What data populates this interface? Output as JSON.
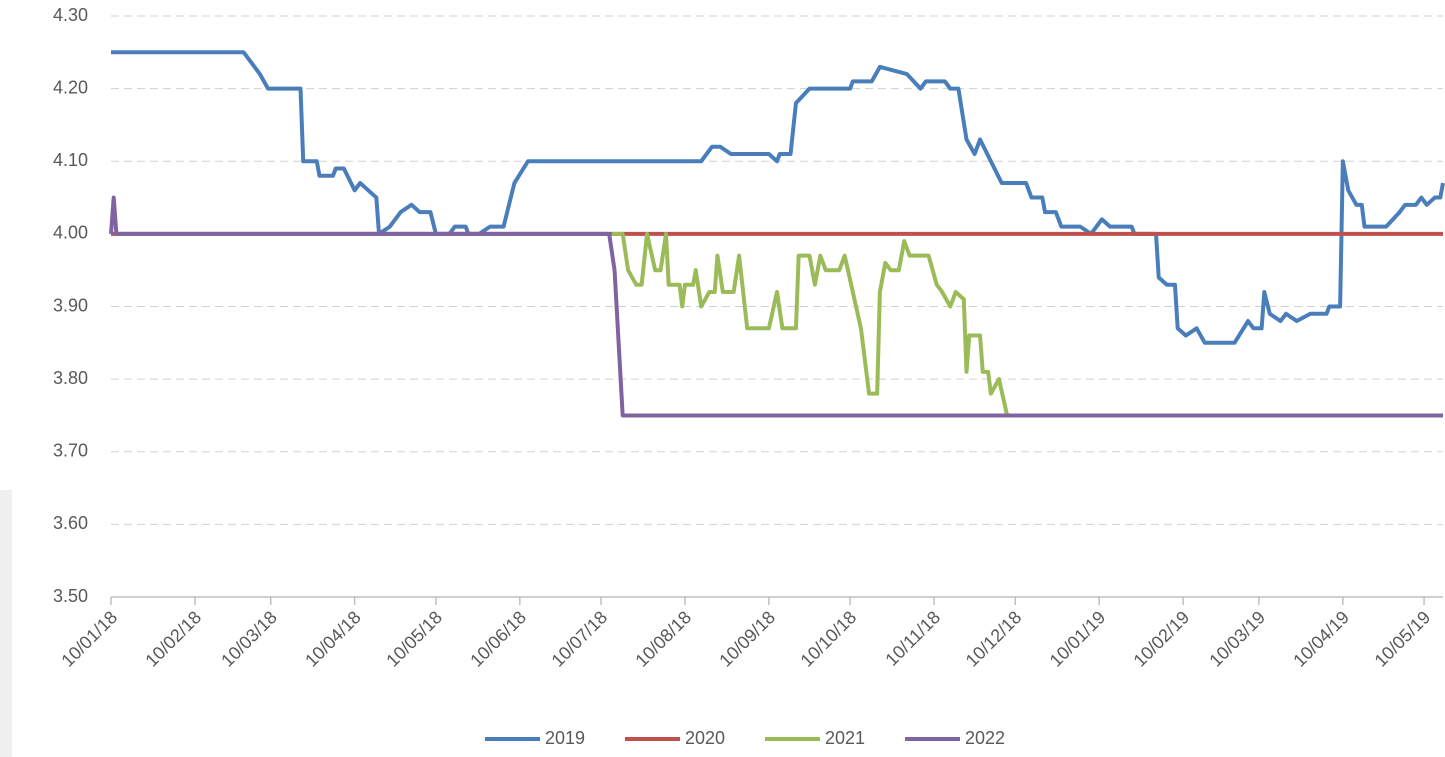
{
  "chart_data": {
    "type": "line",
    "xlim": [
      "2018-01-10",
      "2019-05-17"
    ],
    "xticks": [
      {
        "value": "2018-01-10",
        "label": "10/01/18"
      },
      {
        "value": "2018-02-10",
        "label": "10/02/18"
      },
      {
        "value": "2018-03-10",
        "label": "10/03/18"
      },
      {
        "value": "2018-04-10",
        "label": "10/04/18"
      },
      {
        "value": "2018-05-10",
        "label": "10/05/18"
      },
      {
        "value": "2018-06-10",
        "label": "10/06/18"
      },
      {
        "value": "2018-07-10",
        "label": "10/07/18"
      },
      {
        "value": "2018-08-10",
        "label": "10/08/18"
      },
      {
        "value": "2018-09-10",
        "label": "10/09/18"
      },
      {
        "value": "2018-10-10",
        "label": "10/10/18"
      },
      {
        "value": "2018-11-10",
        "label": "10/11/18"
      },
      {
        "value": "2018-12-10",
        "label": "10/12/18"
      },
      {
        "value": "2019-01-10",
        "label": "10/01/19"
      },
      {
        "value": "2019-02-10",
        "label": "10/02/19"
      },
      {
        "value": "2019-03-10",
        "label": "10/03/19"
      },
      {
        "value": "2019-04-10",
        "label": "10/04/19"
      },
      {
        "value": "2019-05-10",
        "label": "10/05/19"
      }
    ],
    "ylim": [
      3.5,
      4.3
    ],
    "yticks": [
      {
        "value": 3.5,
        "label": "3.50"
      },
      {
        "value": 3.6,
        "label": "3.60"
      },
      {
        "value": 3.7,
        "label": "3.70"
      },
      {
        "value": 3.8,
        "label": "3.80"
      },
      {
        "value": 3.9,
        "label": "3.90"
      },
      {
        "value": 4.0,
        "label": "4.00"
      },
      {
        "value": 4.1,
        "label": "4.10"
      },
      {
        "value": 4.2,
        "label": "4.20"
      },
      {
        "value": 4.3,
        "label": "4.30"
      }
    ],
    "grid": true,
    "legend": "bottom",
    "series": [
      {
        "name": "2019",
        "color": "#4a7ebb",
        "x": [
          "2018-01-10",
          "2018-02-28",
          "2018-03-06",
          "2018-03-09",
          "2018-03-21",
          "2018-03-22",
          "2018-03-27",
          "2018-03-28",
          "2018-04-02",
          "2018-04-03",
          "2018-04-06",
          "2018-04-10",
          "2018-04-12",
          "2018-04-18",
          "2018-04-19",
          "2018-04-23",
          "2018-04-27",
          "2018-05-01",
          "2018-05-04",
          "2018-05-08",
          "2018-05-10",
          "2018-05-15",
          "2018-05-17",
          "2018-05-21",
          "2018-05-22",
          "2018-05-26",
          "2018-05-30",
          "2018-06-04",
          "2018-06-08",
          "2018-06-13",
          "2018-08-16",
          "2018-08-20",
          "2018-08-23",
          "2018-08-27",
          "2018-09-10",
          "2018-09-13",
          "2018-09-14",
          "2018-09-18",
          "2018-09-20",
          "2018-09-25",
          "2018-10-10",
          "2018-10-11",
          "2018-10-18",
          "2018-10-21",
          "2018-10-31",
          "2018-11-05",
          "2018-11-07",
          "2018-11-14",
          "2018-11-16",
          "2018-11-19",
          "2018-11-22",
          "2018-11-25",
          "2018-11-27",
          "2018-12-01",
          "2018-12-05",
          "2018-12-14",
          "2018-12-16",
          "2018-12-20",
          "2018-12-21",
          "2018-12-25",
          "2018-12-27",
          "2019-01-03",
          "2019-01-07",
          "2019-01-11",
          "2019-01-14",
          "2019-01-22",
          "2019-01-23",
          "2019-01-31",
          "2019-02-01",
          "2019-02-04",
          "2019-02-07",
          "2019-02-08",
          "2019-02-11",
          "2019-02-15",
          "2019-02-18",
          "2019-03-01",
          "2019-03-06",
          "2019-03-08",
          "2019-03-11",
          "2019-03-12",
          "2019-03-14",
          "2019-03-18",
          "2019-03-20",
          "2019-03-24",
          "2019-03-29",
          "2019-04-04",
          "2019-04-05",
          "2019-04-09",
          "2019-04-10",
          "2019-04-12",
          "2019-04-15",
          "2019-04-17",
          "2019-04-18",
          "2019-04-26",
          "2019-05-01",
          "2019-05-03",
          "2019-05-07",
          "2019-05-09",
          "2019-05-11",
          "2019-05-14",
          "2019-05-16",
          "2019-05-17"
        ],
        "values": [
          4.25,
          4.25,
          4.22,
          4.2,
          4.2,
          4.1,
          4.1,
          4.08,
          4.08,
          4.09,
          4.09,
          4.06,
          4.07,
          4.05,
          4.0,
          4.01,
          4.03,
          4.04,
          4.03,
          4.03,
          4.0,
          4.0,
          4.01,
          4.01,
          4.0,
          4.0,
          4.01,
          4.01,
          4.07,
          4.1,
          4.1,
          4.12,
          4.12,
          4.11,
          4.11,
          4.1,
          4.11,
          4.11,
          4.18,
          4.2,
          4.2,
          4.21,
          4.21,
          4.23,
          4.22,
          4.2,
          4.21,
          4.21,
          4.2,
          4.2,
          4.13,
          4.11,
          4.13,
          4.1,
          4.07,
          4.07,
          4.05,
          4.05,
          4.03,
          4.03,
          4.01,
          4.01,
          4.0,
          4.02,
          4.01,
          4.01,
          4.0,
          4.0,
          3.94,
          3.93,
          3.93,
          3.87,
          3.86,
          3.87,
          3.85,
          3.85,
          3.88,
          3.87,
          3.87,
          3.92,
          3.89,
          3.88,
          3.89,
          3.88,
          3.89,
          3.89,
          3.9,
          3.9,
          4.1,
          4.06,
          4.04,
          4.04,
          4.01,
          4.01,
          4.03,
          4.04,
          4.04,
          4.05,
          4.04,
          4.05,
          4.05,
          4.07
        ]
      },
      {
        "name": "2020",
        "color": "#c0504d",
        "x": [
          "2018-01-10",
          "2019-05-17"
        ],
        "values": [
          4.0,
          4.0
        ]
      },
      {
        "name": "2021",
        "color": "#9bbb59",
        "x": [
          "2018-07-14",
          "2018-07-18",
          "2018-07-20",
          "2018-07-23",
          "2018-07-25",
          "2018-07-27",
          "2018-07-30",
          "2018-08-01",
          "2018-08-03",
          "2018-08-04",
          "2018-08-08",
          "2018-08-09",
          "2018-08-10",
          "2018-08-13",
          "2018-08-14",
          "2018-08-16",
          "2018-08-19",
          "2018-08-21",
          "2018-08-22",
          "2018-08-24",
          "2018-08-28",
          "2018-08-30",
          "2018-09-02",
          "2018-09-10",
          "2018-09-13",
          "2018-09-15",
          "2018-09-20",
          "2018-09-21",
          "2018-09-25",
          "2018-09-27",
          "2018-09-29",
          "2018-10-01",
          "2018-10-06",
          "2018-10-08",
          "2018-10-14",
          "2018-10-17",
          "2018-10-20",
          "2018-10-21",
          "2018-10-23",
          "2018-10-25",
          "2018-10-28",
          "2018-10-30",
          "2018-11-01",
          "2018-11-08",
          "2018-11-11",
          "2018-11-13",
          "2018-11-16",
          "2018-11-18",
          "2018-11-21",
          "2018-11-22",
          "2018-11-23",
          "2018-11-27",
          "2018-11-28",
          "2018-11-30",
          "2018-12-01",
          "2018-12-04",
          "2018-12-07"
        ],
        "values": [
          4.0,
          4.0,
          3.95,
          3.93,
          3.93,
          4.0,
          3.95,
          3.95,
          4.0,
          3.93,
          3.93,
          3.9,
          3.93,
          3.93,
          3.95,
          3.9,
          3.92,
          3.92,
          3.97,
          3.92,
          3.92,
          3.97,
          3.87,
          3.87,
          3.92,
          3.87,
          3.87,
          3.97,
          3.97,
          3.93,
          3.97,
          3.95,
          3.95,
          3.97,
          3.87,
          3.78,
          3.78,
          3.92,
          3.96,
          3.95,
          3.95,
          3.99,
          3.97,
          3.97,
          3.93,
          3.92,
          3.9,
          3.92,
          3.91,
          3.81,
          3.86,
          3.86,
          3.81,
          3.81,
          3.78,
          3.8,
          3.75
        ]
      },
      {
        "name": "2022",
        "color": "#8064a2",
        "x": [
          "2018-01-10",
          "2018-01-11",
          "2018-01-12",
          "2018-07-13",
          "2018-07-15",
          "2018-07-18",
          "2019-05-17"
        ],
        "values": [
          4.0,
          4.05,
          4.0,
          4.0,
          3.95,
          3.75,
          3.75
        ]
      }
    ]
  }
}
